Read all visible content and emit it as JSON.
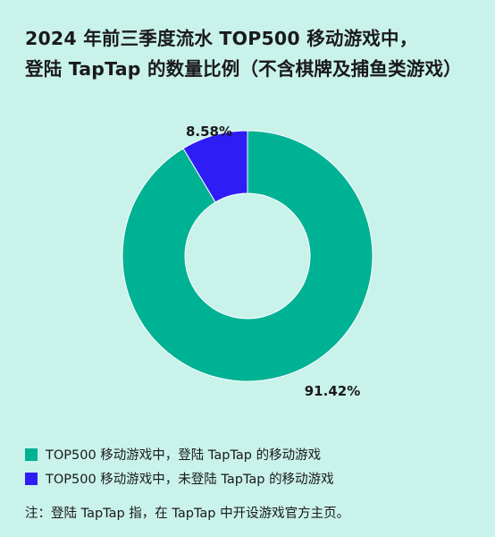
{
  "title": {
    "line1": "2024 年前三季度流水 TOP500 移动游戏中，",
    "line2": "登陆 TapTap 的数量比例（不含棋牌及捕鱼类游戏）"
  },
  "chart_data": {
    "type": "pie",
    "title": "2024 年前三季度流水 TOP500 移动游戏中，登陆 TapTap 的数量比例（不含棋牌及捕鱼类游戏）",
    "donut": true,
    "legend_position": "bottom-left",
    "series": [
      {
        "name": "TOP500 移动游戏中，登陆 TapTap 的移动游戏",
        "value": 91.42,
        "label": "91.42%",
        "color": "#00b294"
      },
      {
        "name": "TOP500 移动游戏中，未登陆 TapTap 的移动游戏",
        "value": 8.58,
        "label": "8.58%",
        "color": "#2e1ef5"
      }
    ]
  },
  "note": "注：登陆 TapTap 指，在 TapTap 中开设游戏官方主页。",
  "colors": {
    "background": "#c9f2eb",
    "green": "#00b294",
    "blue": "#2e1ef5"
  }
}
